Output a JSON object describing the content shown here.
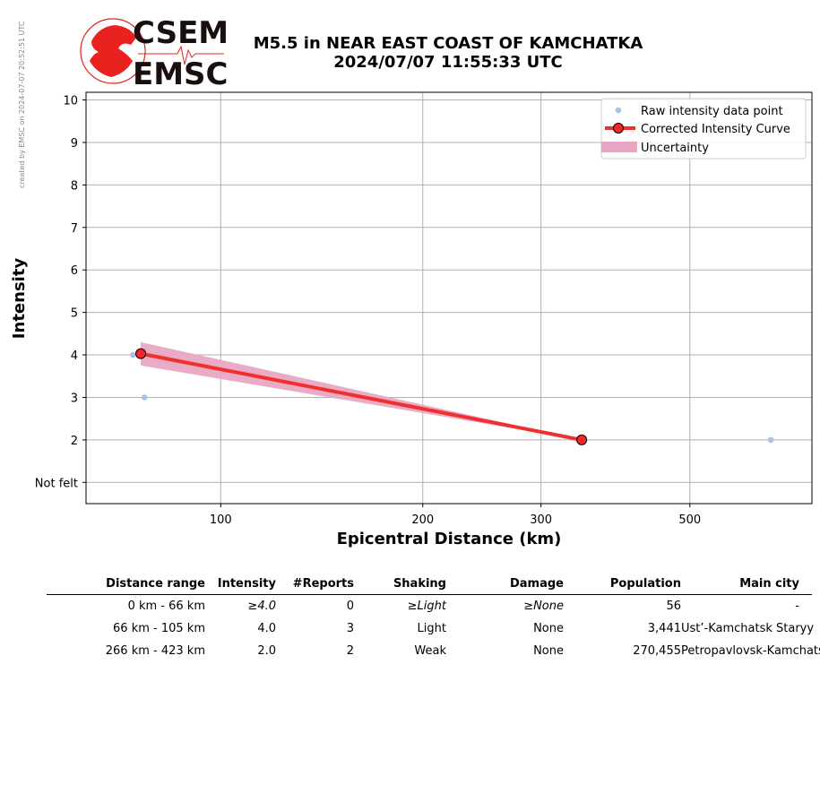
{
  "credit": "created by EMSC on 2024-07-07 20:52:51 UTC",
  "logo": {
    "top_text": "CSEM",
    "bottom_text": "EMSC",
    "accent": "#e8231f"
  },
  "title": {
    "line1": "M5.5 in NEAR EAST COAST OF KAMCHATKA",
    "line2": "2024/07/07 11:55:33 UTC"
  },
  "chart_data": {
    "type": "line",
    "xscale": "log",
    "xlabel": "Epicentral Distance (km)",
    "ylabel": "Intensity",
    "xticks": [
      100,
      200,
      300,
      500
    ],
    "yticks": [
      {
        "v": 1,
        "label": "Not felt"
      },
      {
        "v": 2,
        "label": "2"
      },
      {
        "v": 3,
        "label": "3"
      },
      {
        "v": 4,
        "label": "4"
      },
      {
        "v": 5,
        "label": "5"
      },
      {
        "v": 6,
        "label": "6"
      },
      {
        "v": 7,
        "label": "7"
      },
      {
        "v": 8,
        "label": "8"
      },
      {
        "v": 9,
        "label": "9"
      },
      {
        "v": 10,
        "label": "10"
      }
    ],
    "xlim": [
      63,
      760
    ],
    "ylim": [
      0.5,
      10.18
    ],
    "grid": true,
    "legend_position": "top-right",
    "series": [
      {
        "name": "Raw intensity data point",
        "kind": "scatter",
        "color": "#aebfec",
        "points": [
          [
            74,
            4.0
          ],
          [
            77,
            3.0
          ],
          [
            660,
            2.0
          ]
        ]
      },
      {
        "name": "Corrected Intensity Curve",
        "kind": "line",
        "color": "#f03030",
        "points": [
          [
            76,
            4.03
          ],
          [
            345,
            2.0
          ]
        ]
      },
      {
        "name": "Uncertainty",
        "kind": "band",
        "color": "#e8a6c3",
        "upper": [
          [
            76,
            4.3
          ],
          [
            345,
            2.0
          ]
        ],
        "lower": [
          [
            76,
            3.75
          ],
          [
            345,
            2.0
          ]
        ]
      }
    ]
  },
  "table": {
    "headers": [
      "Distance range",
      "Intensity",
      "#Reports",
      "Shaking",
      "Damage",
      "Population",
      "Main city"
    ],
    "rows": [
      {
        "range": "0 km -   66 km",
        "intensity": "≥4.0",
        "reports": "0",
        "shaking": "≥Light",
        "damage": "≥None",
        "population": "56",
        "city": "-",
        "italic": true
      },
      {
        "range": "66 km -  105 km",
        "intensity": "4.0",
        "reports": "3",
        "shaking": "Light",
        "damage": "None",
        "population": "3,441",
        "city": "Ust’-Kamchatsk Staryy",
        "italic": false
      },
      {
        "range": "266 km -  423 km",
        "intensity": "2.0",
        "reports": "2",
        "shaking": "Weak",
        "damage": "None",
        "population": "270,455",
        "city": "Petropavlovsk-Kamchatsky",
        "italic": false
      }
    ]
  }
}
